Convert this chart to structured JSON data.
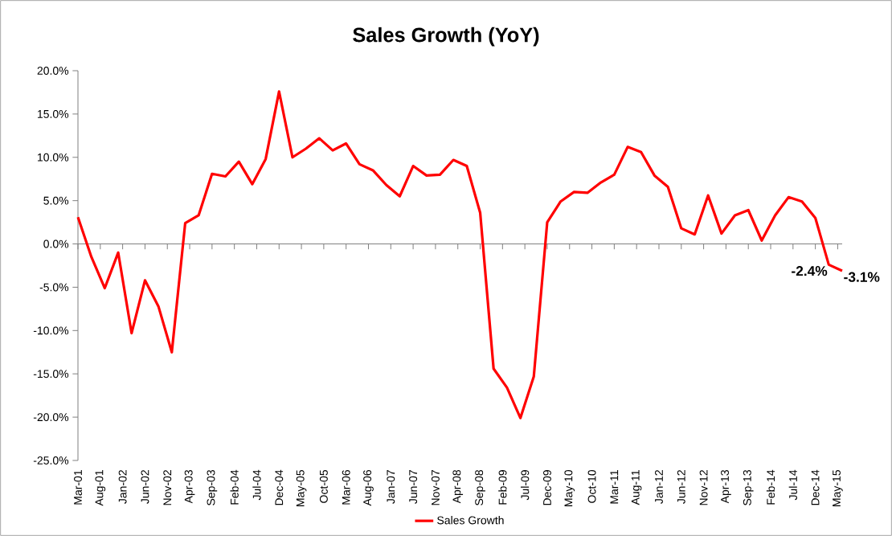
{
  "chart_data": {
    "type": "line",
    "title": "Sales Growth (YoY)",
    "x": [
      "2001-03",
      "2001-06",
      "2001-09",
      "2001-12",
      "2002-03",
      "2002-06",
      "2002-09",
      "2002-12",
      "2003-03",
      "2003-06",
      "2003-09",
      "2003-12",
      "2004-03",
      "2004-06",
      "2004-09",
      "2004-12",
      "2005-03",
      "2005-06",
      "2005-09",
      "2005-12",
      "2006-03",
      "2006-06",
      "2006-09",
      "2006-12",
      "2007-03",
      "2007-06",
      "2007-09",
      "2007-12",
      "2008-03",
      "2008-06",
      "2008-09",
      "2008-12",
      "2009-03",
      "2009-06",
      "2009-09",
      "2009-12",
      "2010-03",
      "2010-06",
      "2010-09",
      "2010-12",
      "2011-03",
      "2011-06",
      "2011-09",
      "2011-12",
      "2012-03",
      "2012-06",
      "2012-09",
      "2012-12",
      "2013-03",
      "2013-06",
      "2013-09",
      "2013-12",
      "2014-03",
      "2014-06",
      "2014-09",
      "2014-12",
      "2015-03",
      "2015-06"
    ],
    "series": [
      {
        "name": "Sales Growth",
        "color": "#ff0000",
        "values": [
          3.1,
          -1.5,
          -5.1,
          -1.0,
          -10.3,
          -4.2,
          -7.2,
          -12.5,
          2.4,
          3.3,
          8.1,
          7.8,
          9.5,
          6.9,
          9.8,
          17.6,
          10.0,
          11.0,
          12.2,
          10.8,
          11.6,
          9.2,
          8.5,
          6.8,
          5.5,
          9.0,
          7.9,
          8.0,
          9.7,
          9.0,
          3.6,
          -14.4,
          -16.6,
          -20.1,
          -15.3,
          2.5,
          4.9,
          6.0,
          5.9,
          7.1,
          8.0,
          11.2,
          10.6,
          7.9,
          6.6,
          1.8,
          1.1,
          5.6,
          1.2,
          3.3,
          3.9,
          0.4,
          3.3,
          5.4,
          4.9,
          3.0,
          -2.4,
          -3.1
        ],
        "value_labels": [
          null,
          null,
          null,
          null,
          null,
          null,
          null,
          null,
          null,
          null,
          null,
          null,
          null,
          null,
          null,
          null,
          null,
          null,
          null,
          null,
          null,
          null,
          null,
          null,
          null,
          null,
          null,
          null,
          null,
          null,
          null,
          null,
          null,
          null,
          null,
          null,
          null,
          null,
          null,
          null,
          null,
          null,
          null,
          null,
          null,
          null,
          null,
          null,
          null,
          null,
          null,
          null,
          null,
          null,
          null,
          null,
          "-2.4%",
          "-3.1%"
        ]
      }
    ],
    "xlim": [
      "2001-03",
      "2015-06"
    ],
    "xticks": [
      {
        "value": "2001-03",
        "label": "Mar-01"
      },
      {
        "value": "2001-08",
        "label": "Aug-01"
      },
      {
        "value": "2002-01",
        "label": "Jan-02"
      },
      {
        "value": "2002-06",
        "label": "Jun-02"
      },
      {
        "value": "2002-11",
        "label": "Nov-02"
      },
      {
        "value": "2003-04",
        "label": "Apr-03"
      },
      {
        "value": "2003-09",
        "label": "Sep-03"
      },
      {
        "value": "2004-02",
        "label": "Feb-04"
      },
      {
        "value": "2004-07",
        "label": "Jul-04"
      },
      {
        "value": "2004-12",
        "label": "Dec-04"
      },
      {
        "value": "2005-05",
        "label": "May-05"
      },
      {
        "value": "2005-10",
        "label": "Oct-05"
      },
      {
        "value": "2006-03",
        "label": "Mar-06"
      },
      {
        "value": "2006-08",
        "label": "Aug-06"
      },
      {
        "value": "2007-01",
        "label": "Jan-07"
      },
      {
        "value": "2007-06",
        "label": "Jun-07"
      },
      {
        "value": "2007-11",
        "label": "Nov-07"
      },
      {
        "value": "2008-04",
        "label": "Apr-08"
      },
      {
        "value": "2008-09",
        "label": "Sep-08"
      },
      {
        "value": "2009-02",
        "label": "Feb-09"
      },
      {
        "value": "2009-07",
        "label": "Jul-09"
      },
      {
        "value": "2009-12",
        "label": "Dec-09"
      },
      {
        "value": "2010-05",
        "label": "May-10"
      },
      {
        "value": "2010-10",
        "label": "Oct-10"
      },
      {
        "value": "2011-03",
        "label": "Mar-11"
      },
      {
        "value": "2011-08",
        "label": "Aug-11"
      },
      {
        "value": "2012-01",
        "label": "Jan-12"
      },
      {
        "value": "2012-06",
        "label": "Jun-12"
      },
      {
        "value": "2012-11",
        "label": "Nov-12"
      },
      {
        "value": "2013-04",
        "label": "Apr-13"
      },
      {
        "value": "2013-09",
        "label": "Sep-13"
      },
      {
        "value": "2014-02",
        "label": "Feb-14"
      },
      {
        "value": "2014-07",
        "label": "Jul-14"
      },
      {
        "value": "2014-12",
        "label": "Dec-14"
      },
      {
        "value": "2015-05",
        "label": "May-15"
      }
    ],
    "ylim": [
      -25,
      20
    ],
    "yticks": [
      {
        "value": 20,
        "label": "20.0%"
      },
      {
        "value": 15,
        "label": "15.0%"
      },
      {
        "value": 10,
        "label": "10.0%"
      },
      {
        "value": 5,
        "label": "5.0%"
      },
      {
        "value": 0,
        "label": "0.0%"
      },
      {
        "value": -5,
        "label": "-5.0%"
      },
      {
        "value": -10,
        "label": "-10.0%"
      },
      {
        "value": -15,
        "label": "-15.0%"
      },
      {
        "value": -20,
        "label": "-20.0%"
      },
      {
        "value": -25,
        "label": "-25.0%"
      }
    ],
    "legend": "bottom"
  }
}
